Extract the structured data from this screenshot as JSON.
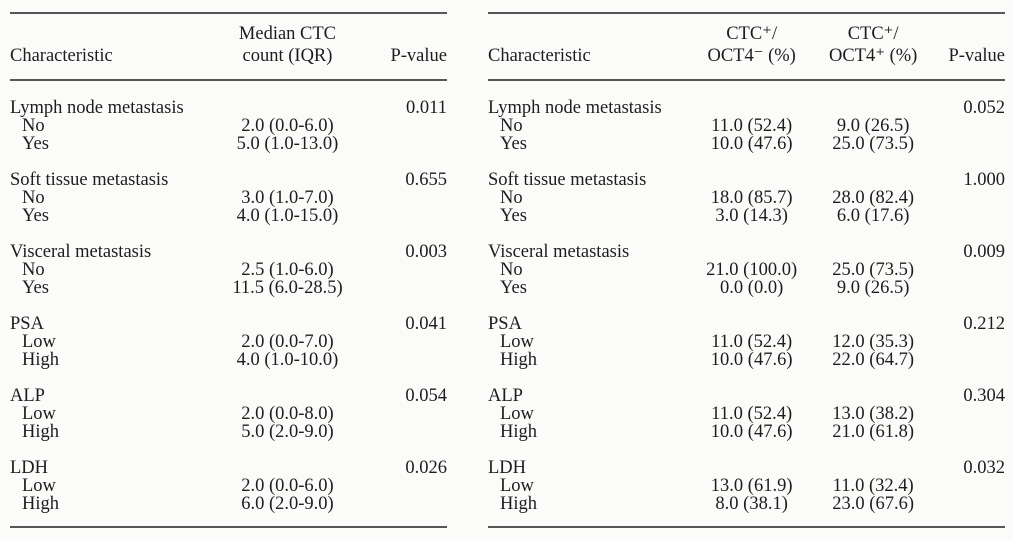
{
  "colors": {
    "background": "#fbfbfa",
    "text": "#1d1d1d",
    "rule": "#565656"
  },
  "left_table": {
    "header": {
      "characteristic": "Characteristic",
      "value_col_line1": "Median CTC",
      "value_col_line2": "count (IQR)",
      "pvalue": "P-value"
    },
    "groups": [
      {
        "label": "Lymph node metastasis",
        "p": "0.011",
        "rows": [
          {
            "label": "No",
            "values": [
              "2.0 (0.0-6.0)"
            ]
          },
          {
            "label": "Yes",
            "values": [
              "5.0 (1.0-13.0)"
            ]
          }
        ]
      },
      {
        "label": "Soft tissue metastasis",
        "p": "0.655",
        "rows": [
          {
            "label": "No",
            "values": [
              "3.0 (1.0-7.0)"
            ]
          },
          {
            "label": "Yes",
            "values": [
              "4.0 (1.0-15.0)"
            ]
          }
        ]
      },
      {
        "label": "Visceral metastasis",
        "p": "0.003",
        "rows": [
          {
            "label": "No",
            "values": [
              "2.5 (1.0-6.0)"
            ]
          },
          {
            "label": "Yes",
            "values": [
              "11.5 (6.0-28.5)"
            ]
          }
        ]
      },
      {
        "label": "PSA",
        "p": "0.041",
        "rows": [
          {
            "label": "Low",
            "values": [
              "2.0 (0.0-7.0)"
            ]
          },
          {
            "label": "High",
            "values": [
              "4.0 (1.0-10.0)"
            ]
          }
        ]
      },
      {
        "label": "ALP",
        "p": "0.054",
        "rows": [
          {
            "label": "Low",
            "values": [
              "2.0 (0.0-8.0)"
            ]
          },
          {
            "label": "High",
            "values": [
              "5.0 (2.0-9.0)"
            ]
          }
        ]
      },
      {
        "label": "LDH",
        "p": "0.026",
        "rows": [
          {
            "label": "Low",
            "values": [
              "2.0 (0.0-6.0)"
            ]
          },
          {
            "label": "High",
            "values": [
              "6.0 (2.0-9.0)"
            ]
          }
        ]
      }
    ]
  },
  "right_table": {
    "header": {
      "characteristic": "Characteristic",
      "col1_line1": "CTC⁺/",
      "col1_line2": "OCT4⁻ (%)",
      "col2_line1": "CTC⁺/",
      "col2_line2": "OCT4⁺ (%)",
      "pvalue": "P-value"
    },
    "groups": [
      {
        "label": "Lymph node metastasis",
        "p": "0.052",
        "rows": [
          {
            "label": "No",
            "values": [
              "11.0 (52.4)",
              "9.0 (26.5)"
            ]
          },
          {
            "label": "Yes",
            "values": [
              "10.0 (47.6)",
              "25.0 (73.5)"
            ]
          }
        ]
      },
      {
        "label": "Soft tissue metastasis",
        "p": "1.000",
        "rows": [
          {
            "label": "No",
            "values": [
              "18.0 (85.7)",
              "28.0 (82.4)"
            ]
          },
          {
            "label": "Yes",
            "values": [
              "3.0 (14.3)",
              "6.0 (17.6)"
            ]
          }
        ]
      },
      {
        "label": "Visceral metastasis",
        "p": "0.009",
        "rows": [
          {
            "label": "No",
            "values": [
              "21.0 (100.0)",
              "25.0 (73.5)"
            ]
          },
          {
            "label": "Yes",
            "values": [
              "0.0 (0.0)",
              "9.0 (26.5)"
            ]
          }
        ]
      },
      {
        "label": "PSA",
        "p": "0.212",
        "rows": [
          {
            "label": "Low",
            "values": [
              "11.0 (52.4)",
              "12.0 (35.3)"
            ]
          },
          {
            "label": "High",
            "values": [
              "10.0 (47.6)",
              "22.0 (64.7)"
            ]
          }
        ]
      },
      {
        "label": "ALP",
        "p": "0.304",
        "rows": [
          {
            "label": "Low",
            "values": [
              "11.0 (52.4)",
              "13.0 (38.2)"
            ]
          },
          {
            "label": "High",
            "values": [
              "10.0 (47.6)",
              "21.0 (61.8)"
            ]
          }
        ]
      },
      {
        "label": "LDH",
        "p": "0.032",
        "rows": [
          {
            "label": "Low",
            "values": [
              "13.0 (61.9)",
              "11.0 (32.4)"
            ]
          },
          {
            "label": "High",
            "values": [
              "8.0 (38.1)",
              "23.0 (67.6)"
            ]
          }
        ]
      }
    ]
  }
}
